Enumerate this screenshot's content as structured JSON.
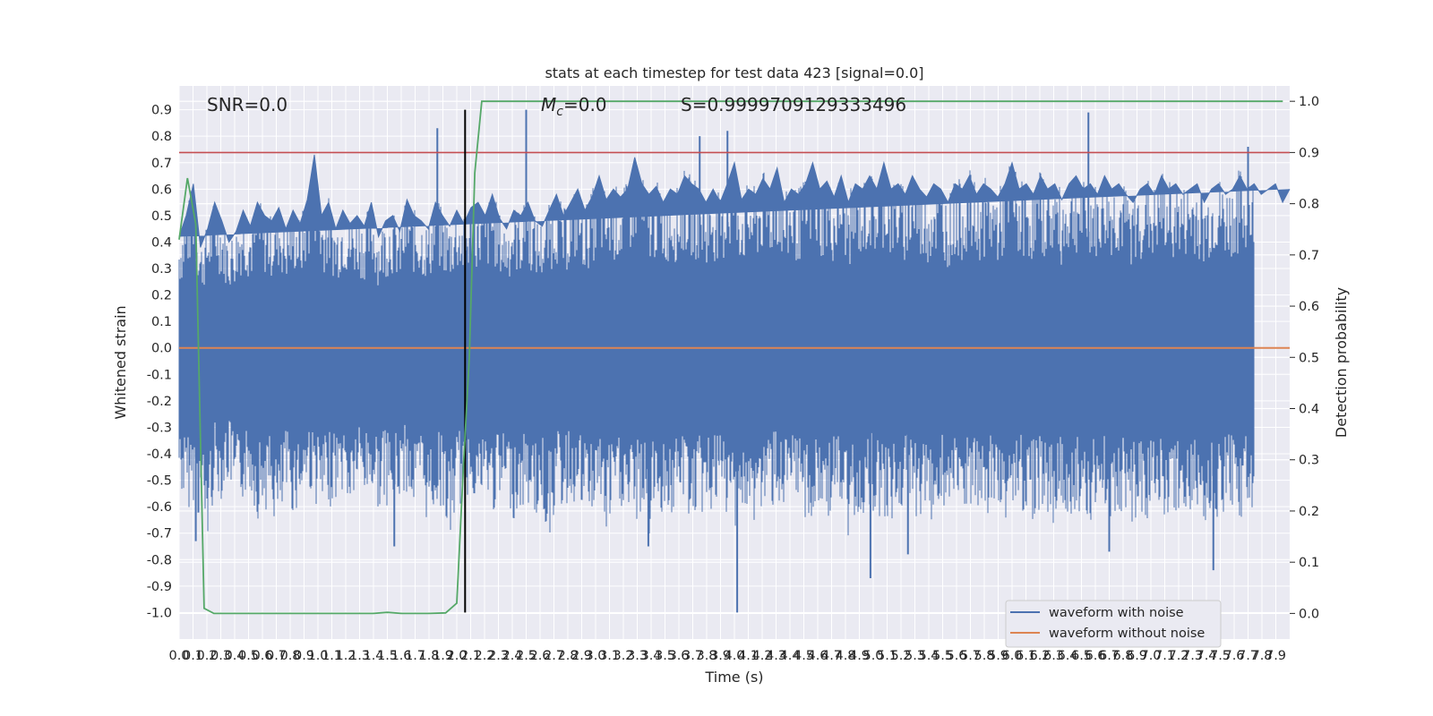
{
  "chart_data": {
    "type": "line",
    "title": "stats at each timestep for test data 423 [signal=0.0]",
    "xlabel": "Time (s)",
    "ylabel": "Whitened strain",
    "y2label": "Detection probability",
    "xlim": [
      0.0,
      8.0
    ],
    "ylim": [
      -1.1,
      0.99
    ],
    "y2lim": [
      -0.05,
      1.03
    ],
    "grid": true,
    "x_ticks": [
      "0.0",
      "0.1",
      "0.2",
      "0.3",
      "0.4",
      "0.5",
      "0.6",
      "0.7",
      "0.8",
      "0.9",
      "1.0",
      "1.1",
      "1.2",
      "1.3",
      "1.4",
      "1.5",
      "1.6",
      "1.7",
      "1.8",
      "1.9",
      "2.0",
      "2.1",
      "2.2",
      "2.3",
      "2.4",
      "2.5",
      "2.6",
      "2.7",
      "2.8",
      "2.9",
      "3.0",
      "3.1",
      "3.2",
      "3.3",
      "3.4",
      "3.5",
      "3.6",
      "3.7",
      "3.8",
      "3.9",
      "4.0",
      "4.1",
      "4.2",
      "4.3",
      "4.4",
      "4.5",
      "4.6",
      "4.7",
      "4.8",
      "4.9",
      "5.0",
      "5.1",
      "5.2",
      "5.3",
      "5.4",
      "5.5",
      "5.6",
      "5.7",
      "5.8",
      "5.9",
      "6.0",
      "6.1",
      "6.2",
      "6.3",
      "6.4",
      "6.5",
      "6.6",
      "6.7",
      "6.8",
      "6.9",
      "7.0",
      "7.1",
      "7.2",
      "7.3",
      "7.4",
      "7.5",
      "7.6",
      "7.7",
      "7.8",
      "7.9"
    ],
    "y_ticks": [
      "0.9",
      "0.8",
      "0.7",
      "0.6",
      "0.5",
      "0.4",
      "0.3",
      "0.2",
      "0.1",
      "0.0",
      "-0.1",
      "-0.2",
      "-0.3",
      "-0.4",
      "-0.5",
      "-0.6",
      "-0.7",
      "-0.8",
      "-0.9",
      "-1.0"
    ],
    "y2_ticks": [
      "1.0",
      "0.9",
      "0.8",
      "0.7",
      "0.6",
      "0.5",
      "0.4",
      "0.3",
      "0.2",
      "0.1",
      "0.0"
    ],
    "annotations": {
      "snr": "SNR=0.0",
      "mc_symbol": "M",
      "mc_sub": "c",
      "mc_value": "=0.0",
      "s": "S=0.9999709129333496"
    },
    "legend": {
      "position": "lower-right",
      "entries": [
        {
          "name": "waveform with noise",
          "color": "#4c72b0"
        },
        {
          "name": "waveform without noise",
          "color": "#dd8452"
        }
      ]
    },
    "series": [
      {
        "name": "waveform with noise",
        "axis": "left",
        "color": "#4c72b0",
        "envelope_upper": [
          0.42,
          0.5,
          0.62,
          0.38,
          0.45,
          0.55,
          0.48,
          0.4,
          0.44,
          0.52,
          0.46,
          0.55,
          0.5,
          0.48,
          0.53,
          0.45,
          0.52,
          0.47,
          0.56,
          0.73,
          0.5,
          0.55,
          0.45,
          0.52,
          0.47,
          0.5,
          0.46,
          0.55,
          0.42,
          0.48,
          0.5,
          0.44,
          0.56,
          0.5,
          0.48,
          0.45,
          0.55,
          0.5,
          0.46,
          0.52,
          0.47,
          0.53,
          0.55,
          0.5,
          0.58,
          0.49,
          0.45,
          0.52,
          0.5,
          0.55,
          0.48,
          0.46,
          0.52,
          0.58,
          0.5,
          0.55,
          0.6,
          0.52,
          0.57,
          0.65,
          0.56,
          0.6,
          0.57,
          0.6,
          0.72,
          0.62,
          0.58,
          0.61,
          0.55,
          0.6,
          0.58,
          0.65,
          0.62,
          0.6,
          0.55,
          0.6,
          0.55,
          0.62,
          0.7,
          0.56,
          0.6,
          0.58,
          0.64,
          0.6,
          0.68,
          0.55,
          0.6,
          0.58,
          0.62,
          0.7,
          0.6,
          0.63,
          0.57,
          0.65,
          0.55,
          0.62,
          0.6,
          0.65,
          0.6,
          0.7,
          0.6,
          0.62,
          0.58,
          0.65,
          0.6,
          0.57,
          0.62,
          0.6,
          0.55,
          0.62,
          0.6,
          0.65,
          0.58,
          0.62,
          0.6,
          0.57,
          0.62,
          0.7,
          0.6,
          0.62,
          0.58,
          0.65,
          0.6,
          0.62,
          0.56,
          0.62,
          0.65,
          0.6,
          0.62,
          0.58,
          0.65,
          0.6,
          0.62,
          0.58,
          0.55,
          0.6,
          0.62,
          0.58,
          0.65,
          0.6,
          0.62,
          0.58,
          0.6,
          0.62,
          0.55,
          0.6,
          0.62,
          0.58,
          0.6,
          0.65,
          0.6,
          0.62,
          0.58,
          0.6,
          0.62,
          0.55,
          0.6
        ],
        "envelope_lower": [
          -0.5,
          -0.6,
          -0.55,
          -0.65,
          -0.72,
          -0.5,
          -0.55,
          -0.48,
          -0.6,
          -0.55,
          -0.52,
          -0.62,
          -0.58,
          -0.6,
          -0.7,
          -0.55,
          -0.6,
          -0.57,
          -0.5,
          -0.55,
          -0.62,
          -0.58,
          -0.55,
          -0.52,
          -0.6,
          -0.5,
          -0.55,
          -0.53,
          -0.58,
          -0.56,
          -0.6,
          -0.55,
          -0.52,
          -0.6,
          -0.55,
          -0.65,
          -0.58,
          -0.57,
          -0.74,
          -0.55,
          -0.6,
          -0.5,
          -0.58,
          -0.55,
          -0.6,
          -0.58,
          -0.55,
          -0.62,
          -0.6,
          -0.57,
          -0.62,
          -0.6,
          -0.7,
          -0.55,
          -0.6,
          -0.55,
          -0.58,
          -0.62,
          -0.6,
          -0.55,
          -0.7,
          -0.6,
          -0.58,
          -0.62,
          -0.65,
          -0.6,
          -0.7,
          -0.58,
          -0.6,
          -0.62,
          -0.6,
          -0.55,
          -0.65,
          -0.6,
          -0.62,
          -0.58,
          -0.6,
          -0.62,
          -0.65,
          -0.6,
          -0.7,
          -0.62,
          -0.6,
          -0.58,
          -0.55,
          -0.62,
          -0.6,
          -0.58,
          -0.62,
          -0.65,
          -0.6,
          -0.62,
          -0.58,
          -0.6,
          -0.72,
          -0.6,
          -0.62,
          -0.58,
          -0.6,
          -0.62,
          -0.65,
          -0.6,
          -0.58,
          -0.62,
          -0.6,
          -0.65,
          -0.62,
          -0.58,
          -0.6,
          -0.62,
          -0.58,
          -0.6,
          -0.62,
          -0.65,
          -0.6,
          -0.58,
          -0.62,
          -0.6,
          -0.58,
          -0.6,
          -0.62,
          -0.58,
          -0.6,
          -0.65,
          -0.6,
          -0.62,
          -0.58,
          -0.6,
          -0.62,
          -0.6,
          -0.58,
          -0.62,
          -0.6,
          -0.58,
          -0.65,
          -0.6,
          -0.62,
          -0.58,
          -0.6,
          -0.62,
          -0.6,
          -0.58,
          -0.62,
          -0.6,
          -0.65,
          -0.6,
          -0.62,
          -0.58,
          -0.6,
          -0.62,
          -0.6,
          -0.58
        ],
        "spikes": [
          {
            "x": 1.86,
            "y": 0.83
          },
          {
            "x": 2.5,
            "y": 0.9
          },
          {
            "x": 3.75,
            "y": 0.8
          },
          {
            "x": 3.95,
            "y": 0.82
          },
          {
            "x": 6.55,
            "y": 0.89
          },
          {
            "x": 7.7,
            "y": 0.76
          },
          {
            "x": 4.02,
            "y": -1.0
          },
          {
            "x": 4.98,
            "y": -0.87
          },
          {
            "x": 7.45,
            "y": -0.84
          },
          {
            "x": 6.7,
            "y": -0.77
          },
          {
            "x": 1.55,
            "y": -0.75
          },
          {
            "x": 0.12,
            "y": -0.73
          },
          {
            "x": 3.38,
            "y": -0.75
          },
          {
            "x": 5.25,
            "y": -0.78
          }
        ]
      },
      {
        "name": "waveform without noise",
        "axis": "left",
        "color": "#dd8452",
        "x": [
          0.0,
          8.0
        ],
        "y": [
          0.0,
          0.0
        ]
      },
      {
        "axis": "right",
        "color": "#55a868",
        "x": [
          0.0,
          0.06,
          0.12,
          0.18,
          0.25,
          0.3,
          0.5,
          1.0,
          1.4,
          1.5,
          1.6,
          1.8,
          1.92,
          2.0,
          2.05,
          2.09,
          2.13,
          2.18,
          2.3,
          2.5,
          3.0,
          4.0,
          5.0,
          6.0,
          7.0,
          7.95
        ],
        "y": [
          0.73,
          0.85,
          0.76,
          0.01,
          0.0,
          0.0,
          0.0,
          0.0,
          0.0,
          0.002,
          0.0,
          0.0,
          0.001,
          0.02,
          0.3,
          0.5,
          0.86,
          1.0,
          1.0,
          1.0,
          1.0,
          1.0,
          1.0,
          1.0,
          1.0,
          1.0
        ]
      }
    ],
    "reference_lines": [
      {
        "orientation": "horizontal",
        "axis": "right",
        "value": 0.9,
        "color": "#c44e52"
      },
      {
        "orientation": "vertical",
        "value": 2.06,
        "ymin": -1.0,
        "ymax": 0.9,
        "color": "#000000"
      }
    ]
  }
}
